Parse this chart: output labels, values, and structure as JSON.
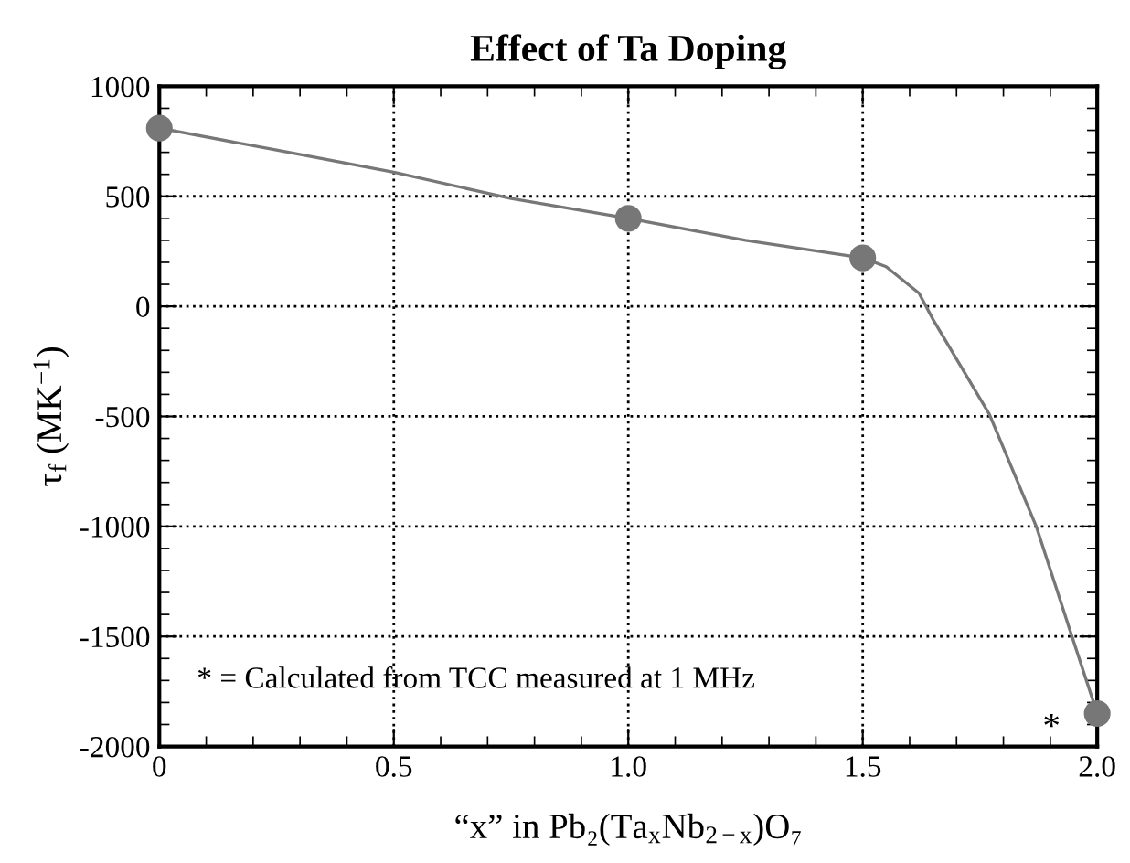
{
  "chart_data": {
    "type": "line",
    "title": "Effect of Ta Doping",
    "xlabel": "“x” in Pb₂(Ta$_{x}$Nb$_{2−x}$)O₇",
    "ylabel": "τ$_{f}$ (MK$^{−1}$)",
    "xlim": [
      0,
      2.0
    ],
    "ylim": [
      -2000,
      1000
    ],
    "xticks": [
      0,
      0.5,
      {
        "value": 1.0,
        "label": "1.0"
      },
      1.5,
      {
        "value": 2.0,
        "label": "2.0"
      }
    ],
    "yticks": [
      -2000,
      -1500,
      -1000,
      -500,
      0,
      500,
      1000
    ],
    "grid": true,
    "line_style": "solid",
    "series": [
      {
        "color": "#777777",
        "marker": "none",
        "x": [
          0,
          0.25,
          0.5,
          0.75,
          1.0,
          1.25,
          1.5,
          1.55,
          1.62,
          1.65,
          1.77,
          1.87,
          1.94,
          2.0
        ],
        "values": [
          810,
          710,
          610,
          490,
          400,
          300,
          220,
          180,
          60,
          -60,
          -490,
          -1000,
          -1460,
          -1850
        ]
      },
      {
        "type": "scatter",
        "color": "#777777",
        "marker": "circle",
        "x": [
          0,
          1.0,
          1.5,
          2.0
        ],
        "values": [
          810,
          400,
          220,
          -1850
        ]
      }
    ],
    "annotations": [
      "* = Calculated from TCC measured at 1 MHz",
      {
        "text": "*",
        "x": 2.0,
        "y": -1850
      }
    ]
  }
}
